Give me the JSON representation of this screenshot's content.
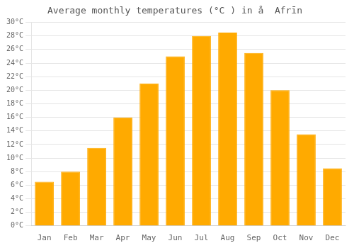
{
  "chart_data": {
    "type": "bar",
    "title": "Average monthly temperatures (°C ) in å  Afrīn",
    "categories": [
      "Jan",
      "Feb",
      "Mar",
      "Apr",
      "May",
      "Jun",
      "Jul",
      "Aug",
      "Sep",
      "Oct",
      "Nov",
      "Dec"
    ],
    "values": [
      6.5,
      8.0,
      11.5,
      16.0,
      21.0,
      25.0,
      28.0,
      28.5,
      25.5,
      20.0,
      13.5,
      8.5
    ],
    "color": "#FFAA00",
    "ylim": [
      0,
      30
    ],
    "yticks": [
      {
        "value": 0,
        "label": "0°C"
      },
      {
        "value": 2,
        "label": "2°C"
      },
      {
        "value": 4,
        "label": "4°C"
      },
      {
        "value": 6,
        "label": "6°C"
      },
      {
        "value": 8,
        "label": "8°C"
      },
      {
        "value": 10,
        "label": "10°C"
      },
      {
        "value": 12,
        "label": "12°C"
      },
      {
        "value": 14,
        "label": "14°C"
      },
      {
        "value": 16,
        "label": "16°C"
      },
      {
        "value": 18,
        "label": "18°C"
      },
      {
        "value": 20,
        "label": "20°C"
      },
      {
        "value": 22,
        "label": "22°C"
      },
      {
        "value": 24,
        "label": "24°C"
      },
      {
        "value": 26,
        "label": "26°C"
      },
      {
        "value": 28,
        "label": "28°C"
      },
      {
        "value": 30,
        "label": "30°C"
      }
    ],
    "grid": true
  }
}
